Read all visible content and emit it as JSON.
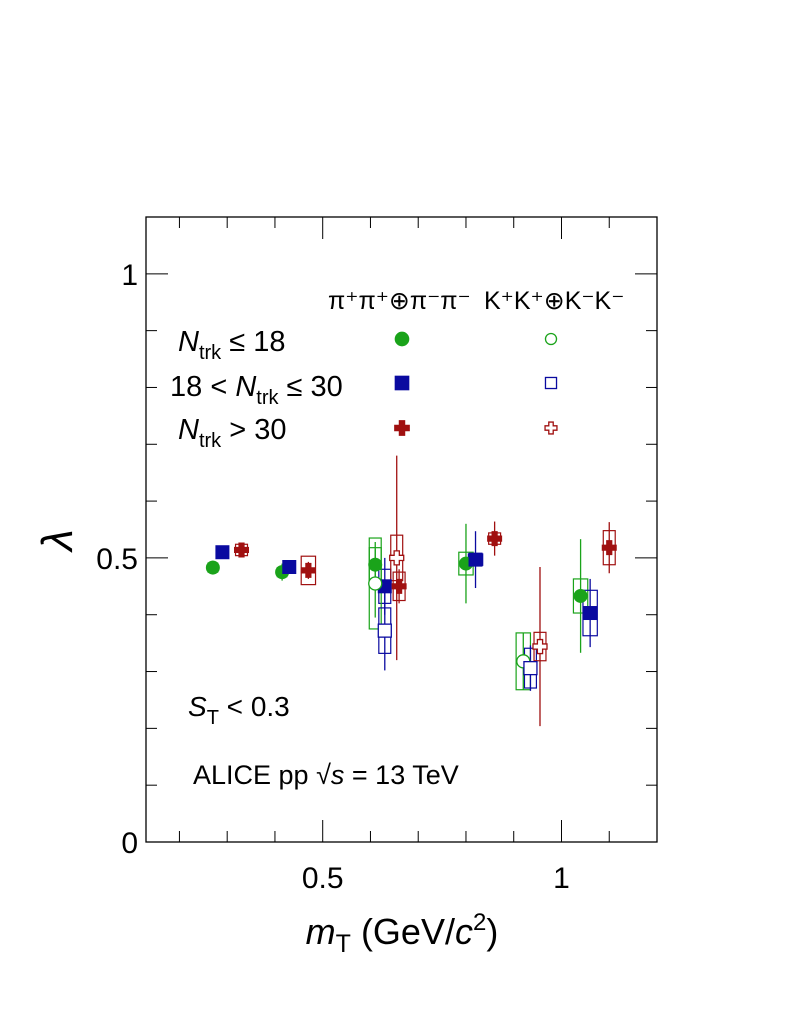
{
  "chart_data": {
    "type": "scatter",
    "xlabel_main": "m",
    "xlabel_sub": "T",
    "xlabel_rest": " (GeV/",
    "xlabel_c": "c",
    "xlabel_sup": "2",
    "xlabel_close": ")",
    "ylabel": "λ",
    "xlim": [
      0.13,
      1.2
    ],
    "ylim": [
      0,
      1.1
    ],
    "x_ticks": [
      {
        "value": 0.5,
        "label": "0.5"
      },
      {
        "value": 1.0,
        "label": "1"
      }
    ],
    "y_ticks": [
      {
        "value": 0,
        "label": "0"
      },
      {
        "value": 0.5,
        "label": "0.5"
      },
      {
        "value": 1.0,
        "label": "1"
      }
    ],
    "column_headers": {
      "pion": "π⁺π⁺⊕π⁻π⁻",
      "kaon": "K⁺K⁺⊕K⁻K⁻"
    },
    "legend_rows": [
      {
        "pre": "",
        "var": "N",
        "sub": "trk",
        "post": " ≤ 18"
      },
      {
        "pre": "18 < ",
        "var": "N",
        "sub": "trk",
        "post": " ≤ 30"
      },
      {
        "pre": "",
        "var": "N",
        "sub": "trk",
        "post": " > 30"
      }
    ],
    "annotation_st": {
      "var": "S",
      "sub": "T",
      "post": " < 0.3"
    },
    "annotation_alice": {
      "pre": "ALICE pp  ",
      "root": "√",
      "var": "s",
      "post": " = 13 TeV"
    },
    "colors": {
      "green": "#1aa31a",
      "blue": "#0a0aa0",
      "red": "#a01010"
    },
    "series": [
      {
        "species": "pion",
        "mult": 0,
        "color": "green",
        "marker": "circle",
        "filled": true,
        "points": [
          {
            "x": 0.27,
            "y": 0.483,
            "stat": 0.012,
            "sys": 0.008,
            "bw": 0.02
          },
          {
            "x": 0.415,
            "y": 0.475,
            "stat": 0.015,
            "sys": 0.008,
            "bw": 0.02
          },
          {
            "x": 0.61,
            "y": 0.488,
            "stat": 0.04,
            "sys": 0.03,
            "bw": 0.025
          },
          {
            "x": 0.8,
            "y": 0.49,
            "stat": 0.07,
            "sys": 0.02,
            "bw": 0.03
          },
          {
            "x": 1.04,
            "y": 0.433,
            "stat": 0.1,
            "sys": 0.03,
            "bw": 0.03
          }
        ]
      },
      {
        "species": "pion",
        "mult": 1,
        "color": "blue",
        "marker": "square",
        "filled": true,
        "points": [
          {
            "x": 0.29,
            "y": 0.51,
            "stat": 0.008,
            "sys": 0.006,
            "bw": 0.02
          },
          {
            "x": 0.43,
            "y": 0.484,
            "stat": 0.01,
            "sys": 0.006,
            "bw": 0.02
          },
          {
            "x": 0.63,
            "y": 0.45,
            "stat": 0.05,
            "sys": 0.03,
            "bw": 0.025
          },
          {
            "x": 0.82,
            "y": 0.497,
            "stat": 0.05,
            "sys": 0.01,
            "bw": 0.03
          },
          {
            "x": 1.06,
            "y": 0.403,
            "stat": 0.06,
            "sys": 0.04,
            "bw": 0.03
          }
        ]
      },
      {
        "species": "pion",
        "mult": 2,
        "color": "red",
        "marker": "cross",
        "filled": true,
        "points": [
          {
            "x": 0.33,
            "y": 0.514,
            "stat": 0.008,
            "sys": 0.01,
            "bw": 0.025
          },
          {
            "x": 0.47,
            "y": 0.478,
            "stat": 0.015,
            "sys": 0.025,
            "bw": 0.03
          },
          {
            "x": 0.66,
            "y": 0.45,
            "stat": 0.03,
            "sys": 0.025,
            "bw": 0.025
          },
          {
            "x": 0.86,
            "y": 0.534,
            "stat": 0.03,
            "sys": 0.01,
            "bw": 0.025
          },
          {
            "x": 1.1,
            "y": 0.518,
            "stat": 0.045,
            "sys": 0.03,
            "bw": 0.025
          }
        ]
      },
      {
        "species": "kaon",
        "mult": 0,
        "color": "green",
        "marker": "circle",
        "filled": false,
        "points": [
          {
            "x": 0.61,
            "y": 0.455,
            "stat": 0.06,
            "sys": 0.08,
            "bw": 0.025
          },
          {
            "x": 0.92,
            "y": 0.318,
            "stat": 0.05,
            "sys": 0.05,
            "bw": 0.03
          }
        ]
      },
      {
        "species": "kaon",
        "mult": 1,
        "color": "blue",
        "marker": "square",
        "filled": false,
        "points": [
          {
            "x": 0.63,
            "y": 0.372,
            "stat": 0.07,
            "sys": 0.04,
            "bw": 0.025
          },
          {
            "x": 0.935,
            "y": 0.306,
            "stat": 0.04,
            "sys": 0.035,
            "bw": 0.025
          }
        ]
      },
      {
        "species": "kaon",
        "mult": 2,
        "color": "red",
        "marker": "cross",
        "filled": false,
        "points": [
          {
            "x": 0.655,
            "y": 0.5,
            "stat": 0.18,
            "sys": 0.04,
            "bw": 0.025
          },
          {
            "x": 0.955,
            "y": 0.344,
            "stat": 0.14,
            "sys": 0.025,
            "bw": 0.025
          }
        ]
      }
    ]
  }
}
